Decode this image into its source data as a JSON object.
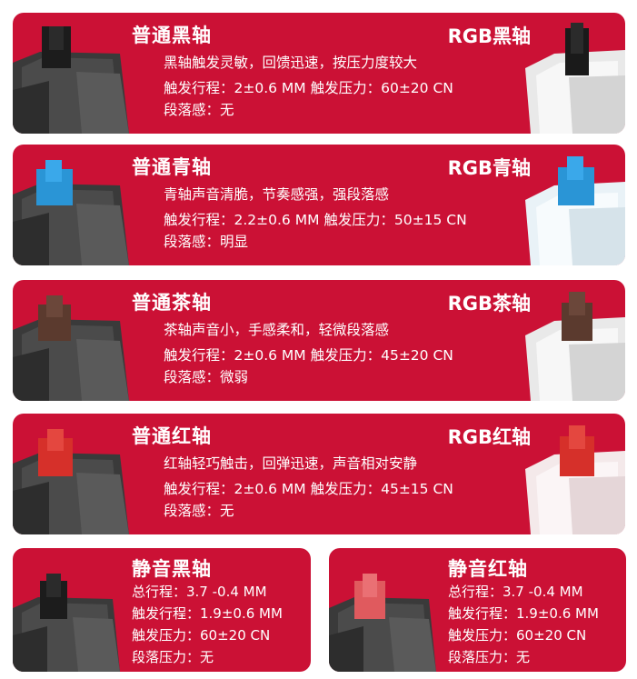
{
  "cards": [
    {
      "title": "普通黑轴",
      "rgb_title": "RGB黑轴",
      "lines": [
        "黑轴触发灵敏，回馈迅速，按压力度较大",
        "触发行程：2±0.6 MM  触发压力：60±20 CN",
        "段落感：无"
      ],
      "stem_color": "#2a2a2a"
    },
    {
      "title": "普通青轴",
      "rgb_title": "RGB青轴",
      "lines": [
        "青轴声音清脆，节奏感强，强段落感",
        "触发行程：2.2±0.6 MM  触发压力：50±15 CN",
        "段落感：明显"
      ],
      "stem_color": "#2a95d6"
    },
    {
      "title": "普通茶轴",
      "rgb_title": "RGB茶轴",
      "lines": [
        "茶轴声音小，手感柔和，轻微段落感",
        "触发行程：2±0.6 MM  触发压力：45±20 CN",
        "段落感：微弱"
      ],
      "stem_color": "#5b3a2e"
    },
    {
      "title": "普通红轴",
      "rgb_title": "RGB红轴",
      "lines": [
        "红轴轻巧触击，回弹迅速，声音相对安静",
        "触发行程：2±0.6 MM  触发压力：45±15 CN",
        "段落感：无"
      ],
      "stem_color": "#d6302a"
    },
    {
      "title": "静音黑轴",
      "lines": [
        "总行程：3.7 -0.4 MM",
        "触发行程：1.9±0.6 MM",
        "触发压力：60±20 CN",
        "段落压力：无"
      ],
      "stem_color": "#2a2a2a"
    },
    {
      "title": "静音红轴",
      "lines": [
        "总行程：3.7 -0.4 MM",
        "触发行程：1.9±0.6 MM",
        "触发压力：60±20 CN",
        "段落压力：无"
      ],
      "stem_color": "#e05a5e"
    }
  ],
  "colors": {
    "card_red": "#cb1135",
    "text": "#ffffff"
  }
}
